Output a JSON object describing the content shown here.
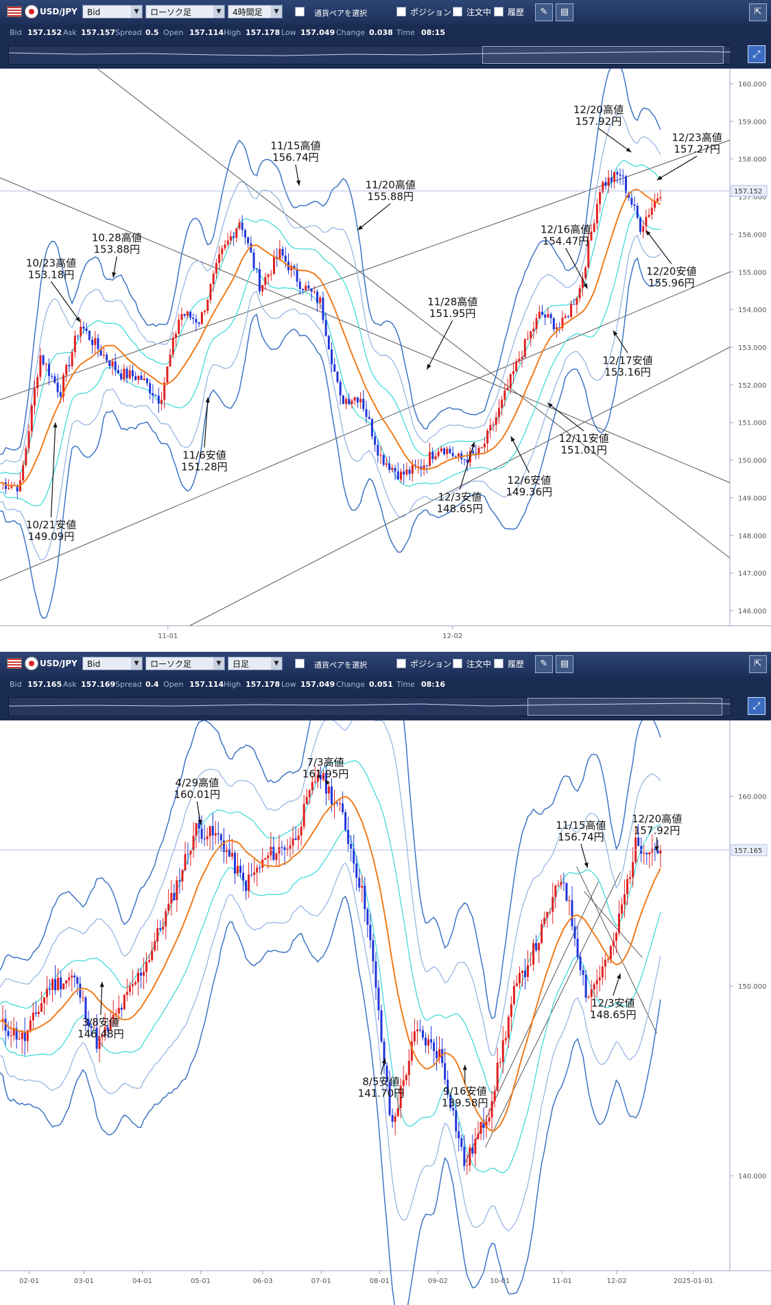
{
  "panels": [
    {
      "toolbar": {
        "pair": "USD/JPY",
        "price_type": "Bid",
        "chart_type": "ローソク足",
        "timeframe": "4時間足",
        "select_pair_label": "通貨ペアを選択",
        "position_label": "ポジション",
        "orders_label": "注文中",
        "history_label": "履歴"
      },
      "quote": {
        "bid_label": "Bid",
        "bid": "157.152",
        "ask_label": "Ask",
        "ask": "157.157",
        "spread_label": "Spread",
        "spread": "0.5",
        "open_label": "Open",
        "open": "157.114",
        "high_label": "High",
        "high": "157.178",
        "low_label": "Low",
        "low": "157.049",
        "change_label": "Change",
        "change": "0.038",
        "time_label": "Time",
        "time": "08:15"
      }
    },
    {
      "toolbar": {
        "pair": "USD/JPY",
        "price_type": "Bid",
        "chart_type": "ローソク足",
        "timeframe": "日足",
        "select_pair_label": "通貨ペアを選択",
        "position_label": "ポジション",
        "orders_label": "注文中",
        "history_label": "履歴"
      },
      "quote": {
        "bid_label": "Bid",
        "bid": "157.165",
        "ask_label": "Ask",
        "ask": "157.169",
        "spread_label": "Spread",
        "spread": "0.4",
        "open_label": "Open",
        "open": "157.114",
        "high_label": "High",
        "high": "157.178",
        "low_label": "Low",
        "low": "157.049",
        "change_label": "Change",
        "change": "0.051",
        "time_label": "Time",
        "time": "08:16"
      }
    }
  ],
  "chart_data": [
    {
      "type": "line",
      "chart": "USD/JPY 4時間足",
      "ylim": [
        145.6,
        160.4
      ],
      "yticks": [
        "160.000",
        "159.000",
        "158.000",
        "157.000",
        "156.000",
        "155.000",
        "154.000",
        "153.000",
        "152.000",
        "151.000",
        "150.000",
        "149.000",
        "148.000",
        "147.000",
        "146.000"
      ],
      "xticks": [
        "11-01",
        "12-02"
      ],
      "current_price": "157.152",
      "series": [
        {
          "style": "close",
          "x": [
            "10-18",
            "10-21",
            "10-23",
            "10-25",
            "10-28",
            "10-30",
            "11-01",
            "11-04",
            "11-06",
            "11-08",
            "11-11",
            "11-13",
            "11-15",
            "11-18",
            "11-20",
            "11-22",
            "11-25",
            "11-27",
            "11-28",
            "11-29",
            "12-02",
            "12-03",
            "12-04",
            "12-06",
            "12-09",
            "12-11",
            "12-13",
            "12-16",
            "12-17",
            "12-18",
            "12-19",
            "12-20",
            "12-20b",
            "12-23"
          ],
          "values": [
            149.4,
            149.3,
            152.8,
            151.8,
            153.6,
            152.9,
            152.3,
            152.2,
            151.6,
            153.9,
            153.7,
            155.4,
            156.4,
            154.6,
            155.5,
            154.7,
            154.2,
            151.6,
            151.7,
            150.1,
            149.6,
            149.8,
            150.4,
            150.0,
            150.2,
            151.4,
            152.8,
            153.9,
            153.5,
            154.6,
            157.3,
            157.6,
            156.2,
            157.15
          ]
        }
      ],
      "annotations": [
        {
          "label": "10/21安値",
          "price": "149.09円"
        },
        {
          "label": "10/23高値",
          "price": "153.18円"
        },
        {
          "label": "10.28高値",
          "price": "153.88円"
        },
        {
          "label": "11/6安値",
          "price": "151.28円"
        },
        {
          "label": "11/15高値",
          "price": "156.74円"
        },
        {
          "label": "11/20高値",
          "price": "155.88円"
        },
        {
          "label": "11/28高値",
          "price": "151.95円"
        },
        {
          "label": "12/3安値",
          "price": "148.65円"
        },
        {
          "label": "12/6安値",
          "price": "149.36円"
        },
        {
          "label": "12/11安値",
          "price": "151.01円"
        },
        {
          "label": "12/16高値",
          "price": "154.47円"
        },
        {
          "label": "12/17安値",
          "price": "153.16円"
        },
        {
          "label": "12/20高値",
          "price": "157.92円"
        },
        {
          "label": "12/20安値",
          "price": "155.96円"
        },
        {
          "label": "12/23高値",
          "price": "157.27円"
        }
      ]
    },
    {
      "type": "line",
      "chart": "USD/JPY 日足",
      "ylim": [
        135.0,
        164.0
      ],
      "yticks": [
        "160.000",
        "150.000",
        "140.000"
      ],
      "xticks": [
        "02-01",
        "03-01",
        "04-01",
        "05-01",
        "06-03",
        "07-01",
        "08-01",
        "09-02",
        "10-01",
        "11-01",
        "12-02",
        "2025-01-01"
      ],
      "current_price": "157.165",
      "series": [
        {
          "style": "close",
          "x": [
            "01-15",
            "02-01",
            "02-15",
            "03-01",
            "03-08",
            "03-15",
            "04-01",
            "04-15",
            "04-29",
            "05-01",
            "05-15",
            "06-03",
            "06-15",
            "07-03",
            "07-11",
            "07-25",
            "08-05",
            "08-15",
            "09-02",
            "09-16",
            "10-01",
            "10-15",
            "11-01",
            "11-15",
            "12-03",
            "12-11",
            "12-20",
            "12-23"
          ],
          "values": [
            148.0,
            147.2,
            150.0,
            150.5,
            146.9,
            149.0,
            151.3,
            154.5,
            158.3,
            157.8,
            155.3,
            156.9,
            157.6,
            161.3,
            159.0,
            153.9,
            142.5,
            147.6,
            146.4,
            140.5,
            143.5,
            149.6,
            152.4,
            155.9,
            149.4,
            151.8,
            157.5,
            157.16
          ]
        }
      ],
      "annotations": [
        {
          "label": "3/8安値",
          "price": "146.48円"
        },
        {
          "label": "4/29高値",
          "price": "160.01円"
        },
        {
          "label": "7/3高値",
          "price": "161.95円"
        },
        {
          "label": "8/5安値",
          "price": "141.70円"
        },
        {
          "label": "9/16安値",
          "price": "139.58円"
        },
        {
          "label": "11/15高値",
          "price": "156.74円"
        },
        {
          "label": "12/3安値",
          "price": "148.65円"
        },
        {
          "label": "12/20高値",
          "price": "157.92円"
        }
      ]
    }
  ],
  "colors": {
    "up_candle": "#e02020",
    "down_candle": "#1e34d8",
    "ma": "#f07a1a",
    "band_inner": "#33d6d6",
    "band_mid": "#8fb0e0",
    "band_outer": "#3d74c4",
    "trendline": "#555555",
    "price_line": "#aebde0"
  }
}
